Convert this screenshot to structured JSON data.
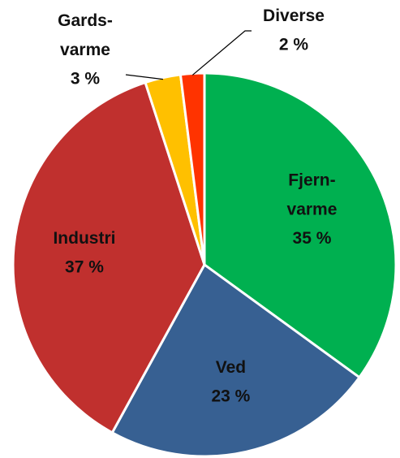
{
  "chart_data": {
    "type": "pie",
    "categories": [
      "Fjern-varme",
      "Ved",
      "Industri",
      "Gards-varme",
      "Diverse"
    ],
    "values": [
      35,
      23,
      37,
      3,
      2
    ],
    "value_labels": [
      "35 %",
      "23 %",
      "37 %",
      "3 %",
      "2 %"
    ],
    "colors": [
      "#00b050",
      "#376092",
      "#c0302e",
      "#ffc000",
      "#ff3300"
    ]
  }
}
